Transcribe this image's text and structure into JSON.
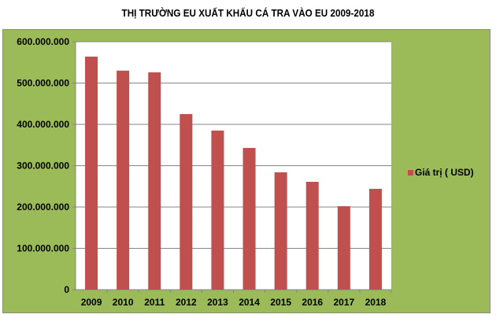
{
  "chart_data": {
    "type": "bar",
    "title": "THỊ TRƯỜNG EU XUẤT KHẨU  CÁ TRA VÀO EU 2009-2018",
    "xlabel": "",
    "ylabel": "",
    "categories": [
      "2009",
      "2010",
      "2011",
      "2012",
      "2013",
      "2014",
      "2015",
      "2016",
      "2017",
      "2018"
    ],
    "series": [
      {
        "name": "Giá trị ( USD)",
        "values": [
          564000000,
          530000000,
          526000000,
          425000000,
          385000000,
          343000000,
          284000000,
          261000000,
          202000000,
          244000000
        ]
      }
    ],
    "ylim": [
      0,
      600000000
    ],
    "yticks": [
      0,
      100000000,
      200000000,
      300000000,
      400000000,
      500000000,
      600000000
    ],
    "ytick_labels": [
      "0",
      "100.000.000",
      "200.000.000",
      "300.000.000",
      "400.000.000",
      "500.000.000",
      "600.000.000"
    ],
    "grid": true,
    "legend_position": "right",
    "colors": {
      "bar": "#C0504D",
      "background": "#9BBB59",
      "plot": "#FFFFFF",
      "grid": "#868686"
    }
  }
}
